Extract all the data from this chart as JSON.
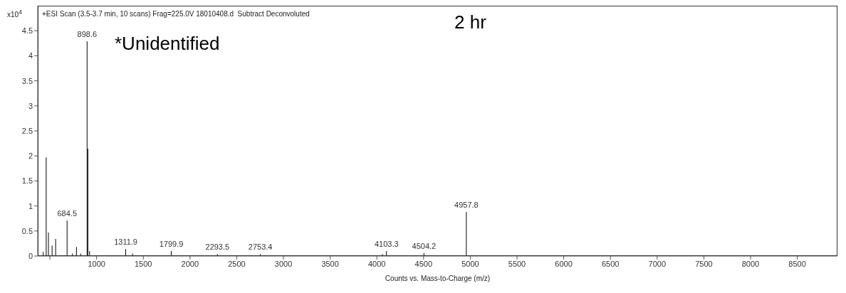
{
  "chart_data": {
    "type": "bar",
    "title": "+ESI Scan (3.5-3.7 min, 10 scans) Frag=225.0V 18010408.d  Subtract Deconvoluted",
    "xlabel": "Counts vs. Mass-to-Charge (m/z)",
    "ylabel": "x10$^{4}$",
    "x": [
      429,
      461,
      485,
      524,
      562,
      684.5,
      742,
      785,
      830,
      898.6,
      907,
      925,
      1311.9,
      1385,
      1799.9,
      2293.5,
      2753.4,
      4060,
      4103.3,
      4504.2,
      4957.8
    ],
    "values": [
      0.08,
      1.97,
      0.47,
      0.21,
      0.34,
      0.71,
      0.05,
      0.18,
      0.05,
      4.29,
      2.14,
      0.1,
      0.14,
      0.05,
      0.1,
      0.04,
      0.04,
      0.04,
      0.1,
      0.06,
      0.88
    ],
    "color": "#000000",
    "xlim": [
      370,
      8930
    ],
    "xticks": [
      {
        "value": 500,
        "label": null
      },
      1000,
      1500,
      2000,
      2500,
      3000,
      3500,
      4000,
      4500,
      5000,
      5500,
      6000,
      6500,
      7000,
      7500,
      8000,
      8500
    ],
    "ylim": [
      0,
      5
    ],
    "yticks": [
      0,
      0.5,
      1,
      1.5,
      2,
      2.5,
      3,
      3.5,
      4,
      4.5
    ],
    "annotations": [
      "2 hr",
      "*Unidentified",
      {
        "text": "898.6",
        "x": 898.6,
        "y": 4.29
      },
      {
        "text": "684.5",
        "x": 684.5,
        "y": 0.71
      },
      {
        "text": "1311.9",
        "x": 1311.9,
        "y": 0.14
      },
      {
        "text": "1799.9",
        "x": 1799.9,
        "y": 0.1
      },
      {
        "text": "2293.5",
        "x": 2293.5,
        "y": 0.04
      },
      {
        "text": "2753.4",
        "x": 2753.4,
        "y": 0.04
      },
      {
        "text": "4103.3",
        "x": 4103.3,
        "y": 0.1
      },
      {
        "text": "4504.2",
        "x": 4504.2,
        "y": 0.06
      },
      {
        "text": "4957.8",
        "x": 4957.8,
        "y": 0.88
      }
    ]
  }
}
